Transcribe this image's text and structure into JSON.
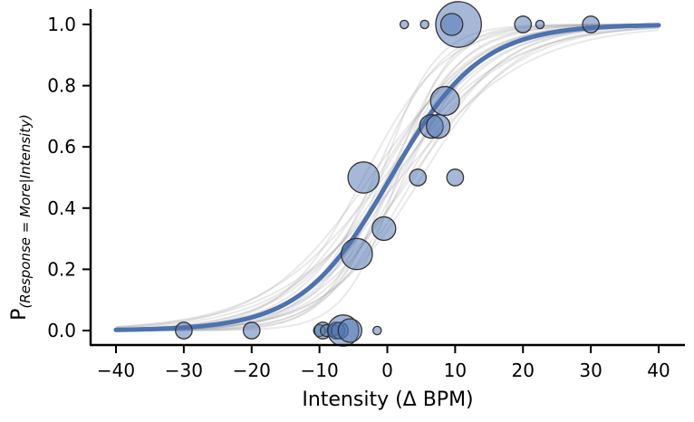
{
  "chart_data": {
    "type": "scatter",
    "xlabel": "Intensity (Δ BPM)",
    "ylabel_main": "P",
    "ylabel_sub": "(Response = More|Intensity)",
    "xlim": [
      -44,
      44
    ],
    "ylim": [
      -0.05,
      1.05
    ],
    "xticks": [
      -40,
      -30,
      -20,
      -10,
      0,
      10,
      20,
      30,
      40
    ],
    "xtick_labels": [
      "−40",
      "−30",
      "−20",
      "−10",
      "0",
      "10",
      "20",
      "30",
      "40"
    ],
    "yticks": [
      0.0,
      0.2,
      0.4,
      0.6,
      0.8,
      1.0
    ],
    "ytick_labels": [
      "0.0",
      "0.2",
      "0.4",
      "0.6",
      "0.8",
      "1.0"
    ],
    "grid": false,
    "colors": {
      "main_curve": "#4c72b0",
      "points": "#4c72b0",
      "samples": "#999999"
    },
    "psychometric_curve": {
      "threshold": 0.5,
      "slope": 6.6,
      "x_range": [
        -40,
        40
      ]
    },
    "posterior_samples": [
      {
        "threshold": -3.5,
        "slope": 6.0
      },
      {
        "threshold": -2.5,
        "slope": 8.0
      },
      {
        "threshold": -2.0,
        "slope": 5.0
      },
      {
        "threshold": -1.5,
        "slope": 7.0
      },
      {
        "threshold": -1.0,
        "slope": 6.5
      },
      {
        "threshold": -0.5,
        "slope": 9.0
      },
      {
        "threshold": 0.0,
        "slope": 5.5
      },
      {
        "threshold": 0.0,
        "slope": 7.5
      },
      {
        "threshold": 0.5,
        "slope": 4.5
      },
      {
        "threshold": 0.5,
        "slope": 6.0
      },
      {
        "threshold": 1.0,
        "slope": 8.5
      },
      {
        "threshold": 1.0,
        "slope": 5.0
      },
      {
        "threshold": 1.5,
        "slope": 7.0
      },
      {
        "threshold": 2.0,
        "slope": 6.0
      },
      {
        "threshold": 2.0,
        "slope": 9.5
      },
      {
        "threshold": 2.5,
        "slope": 5.5
      },
      {
        "threshold": 3.0,
        "slope": 7.0
      },
      {
        "threshold": 3.5,
        "slope": 8.0
      },
      {
        "threshold": 4.0,
        "slope": 6.5
      },
      {
        "threshold": 5.0,
        "slope": 7.0
      },
      {
        "threshold": -1.0,
        "slope": 4.0
      },
      {
        "threshold": 1.5,
        "slope": 3.8
      }
    ],
    "points": [
      {
        "x": -30,
        "y": 0.0,
        "n": 2
      },
      {
        "x": -20,
        "y": 0.0,
        "n": 2
      },
      {
        "x": -10,
        "y": 0.0,
        "n": 1
      },
      {
        "x": -9.5,
        "y": 0.0,
        "n": 2
      },
      {
        "x": -9,
        "y": 0.0,
        "n": 1
      },
      {
        "x": -8,
        "y": 0.0,
        "n": 1
      },
      {
        "x": -7.5,
        "y": 0.0,
        "n": 2
      },
      {
        "x": -7,
        "y": 0.0,
        "n": 2
      },
      {
        "x": -6.5,
        "y": 0.0,
        "n": 7
      },
      {
        "x": -5.5,
        "y": 0.0,
        "n": 4
      },
      {
        "x": -1.5,
        "y": 0.0,
        "n": 0.5
      },
      {
        "x": -4.5,
        "y": 0.25,
        "n": 7
      },
      {
        "x": -3.5,
        "y": 0.5,
        "n": 7
      },
      {
        "x": -0.5,
        "y": 0.333,
        "n": 4
      },
      {
        "x": 4.5,
        "y": 0.5,
        "n": 2
      },
      {
        "x": 10,
        "y": 0.5,
        "n": 2
      },
      {
        "x": 6.5,
        "y": 0.667,
        "n": 4
      },
      {
        "x": 7.5,
        "y": 0.667,
        "n": 4
      },
      {
        "x": 8.5,
        "y": 0.75,
        "n": 6
      },
      {
        "x": 2.5,
        "y": 1.0,
        "n": 0.5
      },
      {
        "x": 5.5,
        "y": 1.0,
        "n": 0.5
      },
      {
        "x": 10.5,
        "y": 1.0,
        "n": 15
      },
      {
        "x": 9.5,
        "y": 1.0,
        "n": 3.5
      },
      {
        "x": 20,
        "y": 1.0,
        "n": 2
      },
      {
        "x": 22.5,
        "y": 1.0,
        "n": 0.5
      },
      {
        "x": 30,
        "y": 1.0,
        "n": 2
      }
    ]
  }
}
